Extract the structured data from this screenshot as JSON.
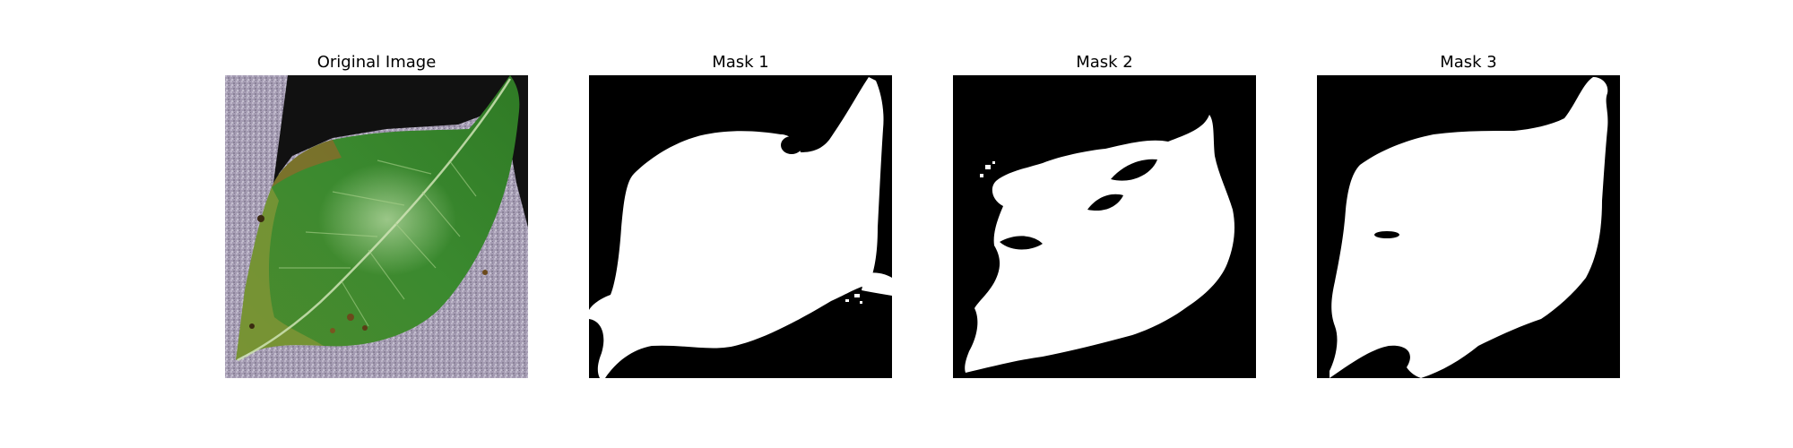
{
  "figure": {
    "panels": [
      {
        "title": "Original Image"
      },
      {
        "title": "Mask 1"
      },
      {
        "title": "Mask 2"
      },
      {
        "title": "Mask 3"
      }
    ]
  },
  "colors": {
    "background": "#ffffff",
    "mask_background": "#000000",
    "mask_foreground": "#ffffff",
    "leaf_green": "#3f8a2c",
    "leaf_dark": "#1f5a16",
    "backdrop_lilac": "#9e95ad"
  }
}
